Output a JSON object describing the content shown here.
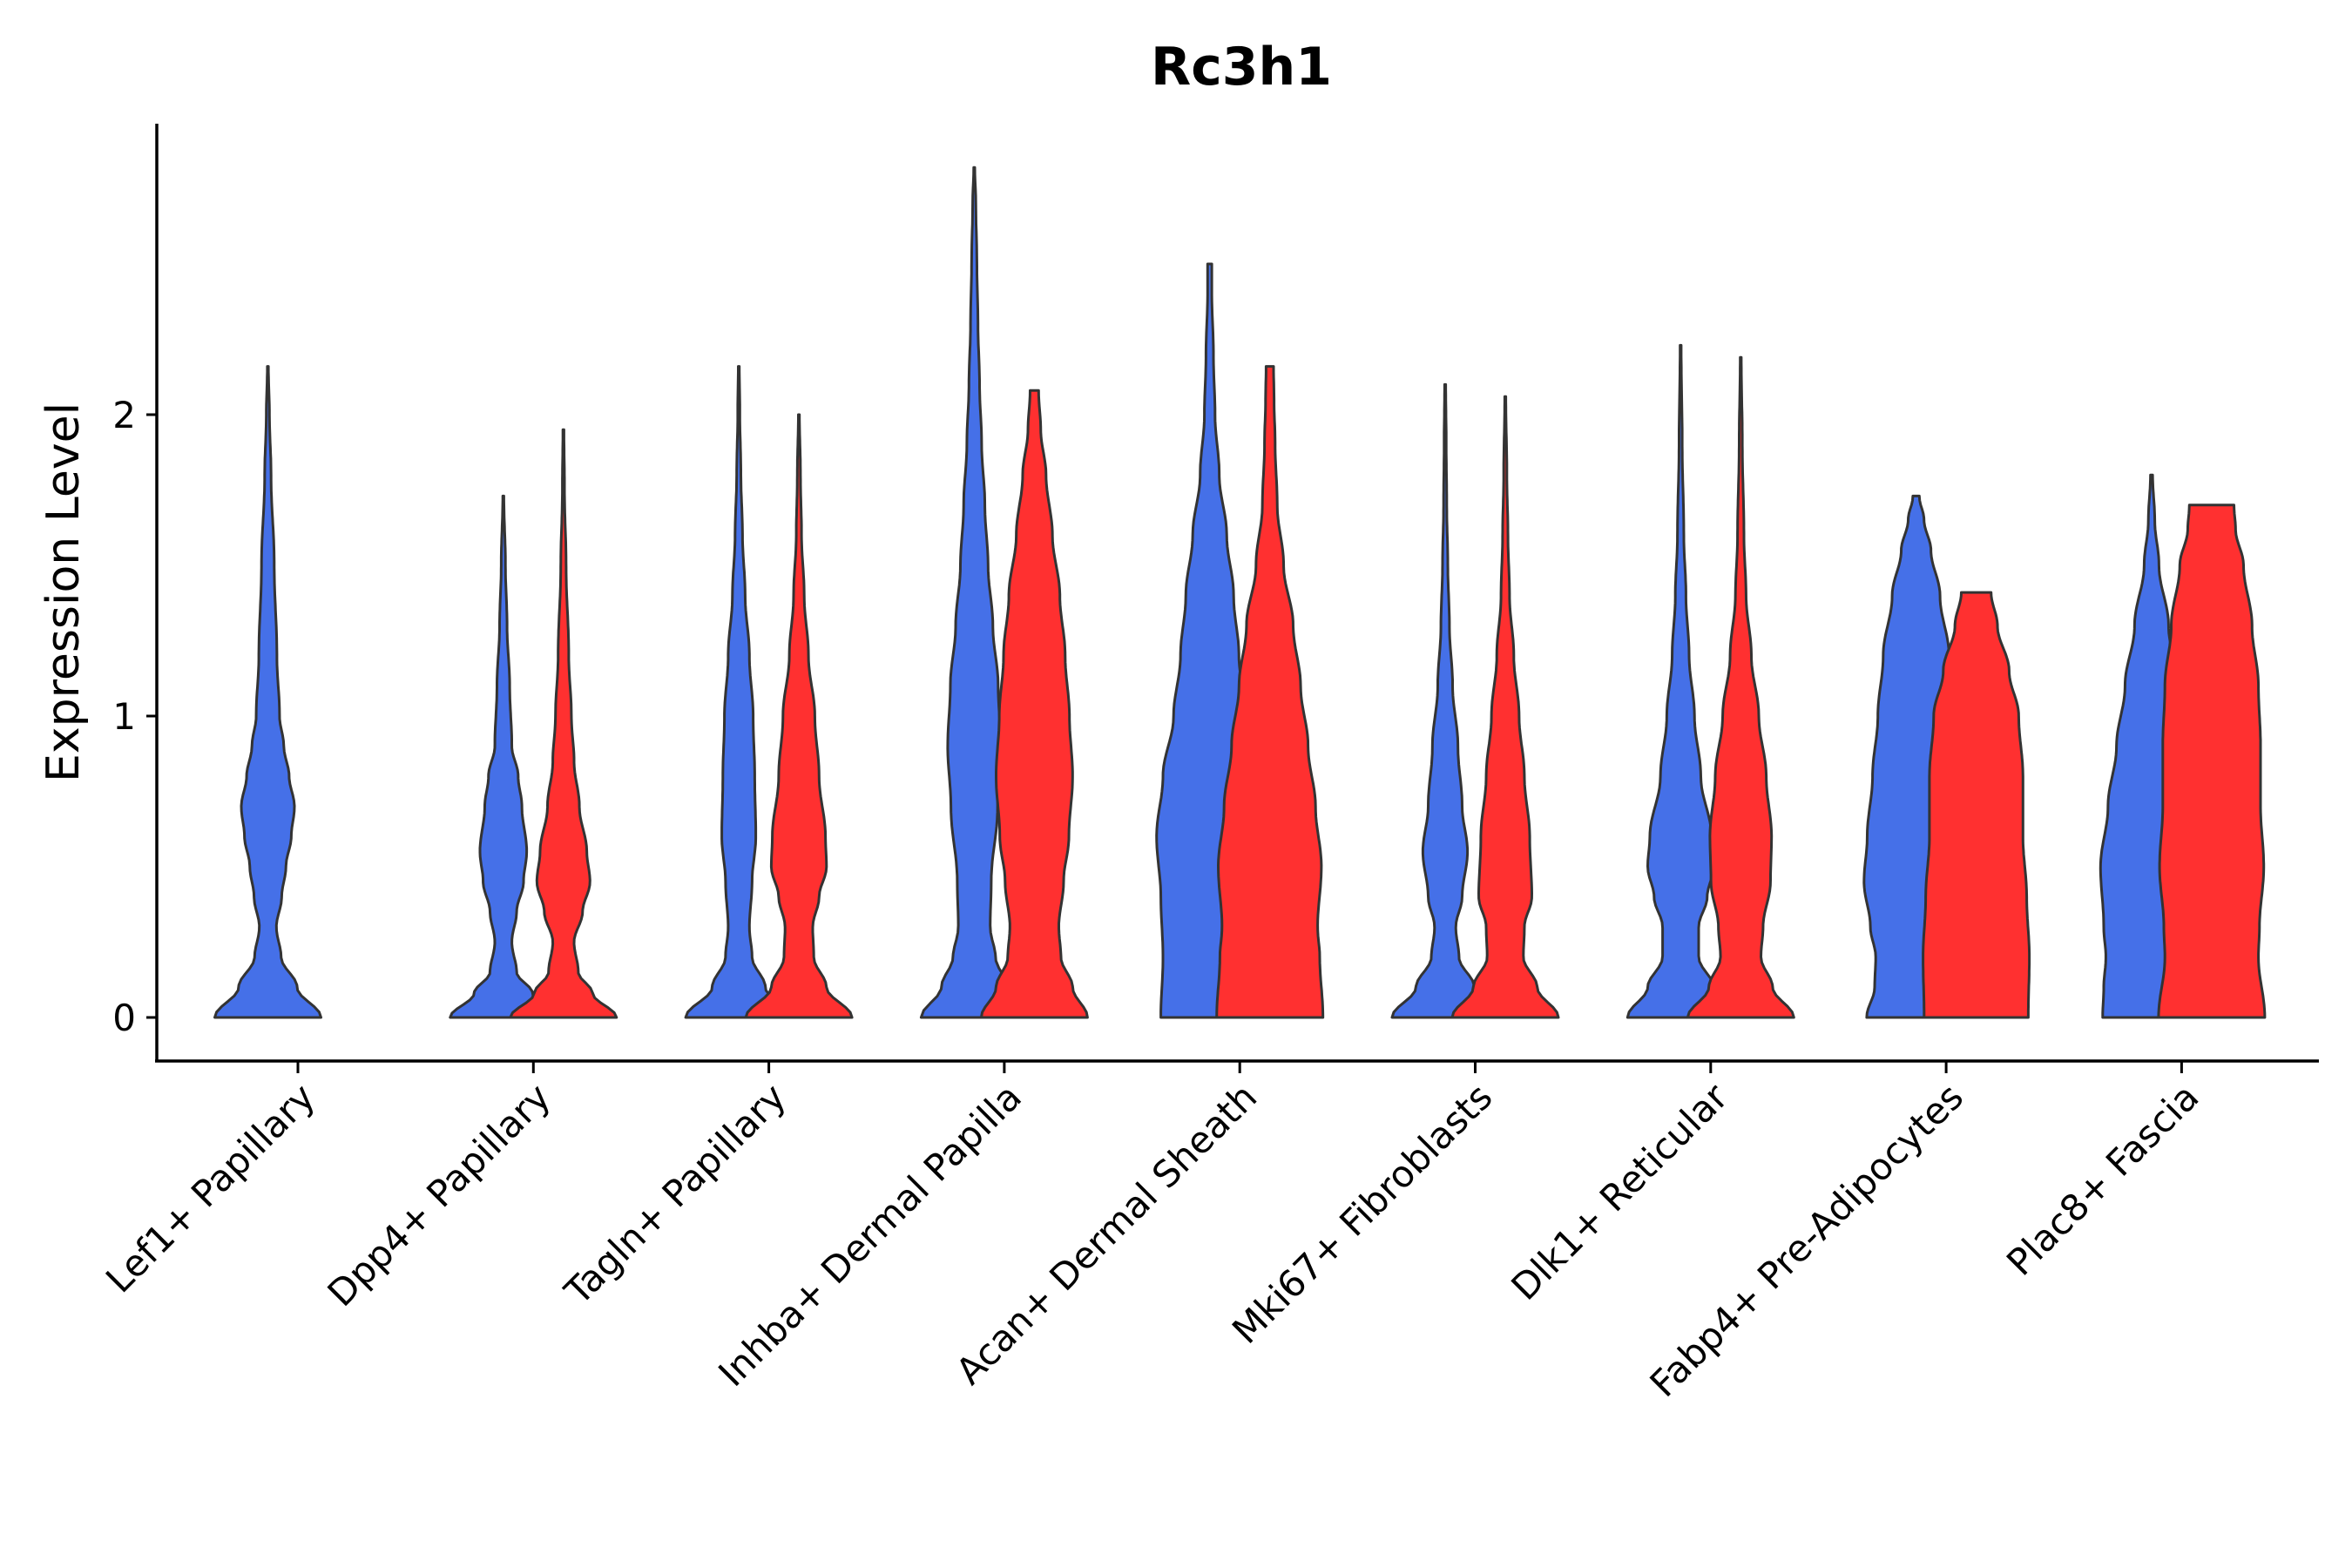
{
  "chart_data": {
    "type": "violin",
    "title": "Rc3h1",
    "xlabel": "",
    "ylabel": "Expression Level",
    "ylim": [
      -0.14,
      2.96
    ],
    "yticks": [
      0,
      1,
      2
    ],
    "grid": false,
    "legend": "none",
    "categories": [
      "Lef1+ Papillary",
      "Dpp4+ Papillary",
      "Tagln+ Papillary",
      "Inhba+ Dermal Papilla",
      "Acan+ Dermal Sheath",
      "Mki67+ Fibroblasts",
      "Dlk1+ Reticular",
      "Fabp4+ Pre-Adipocytes",
      "Plac8+ Fascia"
    ],
    "series": [
      {
        "name": "group 1",
        "color": "#4570E8"
      },
      {
        "name": "group 2",
        "color": "#FF3030"
      }
    ],
    "violins": [
      {
        "category": 0,
        "series": 0,
        "max": 2.16,
        "profile": [
          [
            0,
            1
          ],
          [
            0.1,
            0.55
          ],
          [
            0.2,
            0.25
          ],
          [
            0.3,
            0.16
          ],
          [
            0.4,
            0.26
          ],
          [
            0.5,
            0.34
          ],
          [
            0.6,
            0.44
          ],
          [
            0.7,
            0.5
          ],
          [
            0.8,
            0.4
          ],
          [
            0.9,
            0.3
          ],
          [
            1.0,
            0.22
          ],
          [
            1.2,
            0.17
          ],
          [
            1.5,
            0.12
          ],
          [
            1.8,
            0.06
          ],
          [
            2.0,
            0.03
          ],
          [
            2.16,
            0.01
          ]
        ]
      },
      {
        "category": 1,
        "series": 0,
        "max": 1.73,
        "profile": [
          [
            0,
            1
          ],
          [
            0.08,
            0.55
          ],
          [
            0.15,
            0.25
          ],
          [
            0.25,
            0.16
          ],
          [
            0.35,
            0.25
          ],
          [
            0.45,
            0.38
          ],
          [
            0.55,
            0.44
          ],
          [
            0.7,
            0.35
          ],
          [
            0.8,
            0.28
          ],
          [
            0.9,
            0.16
          ],
          [
            1.1,
            0.12
          ],
          [
            1.3,
            0.07
          ],
          [
            1.5,
            0.04
          ],
          [
            1.73,
            0.01
          ]
        ]
      },
      {
        "category": 1,
        "series": 1,
        "max": 1.95,
        "profile": [
          [
            0,
            1
          ],
          [
            0.08,
            0.55
          ],
          [
            0.15,
            0.28
          ],
          [
            0.25,
            0.2
          ],
          [
            0.35,
            0.36
          ],
          [
            0.45,
            0.5
          ],
          [
            0.55,
            0.44
          ],
          [
            0.7,
            0.3
          ],
          [
            0.85,
            0.2
          ],
          [
            1.0,
            0.15
          ],
          [
            1.2,
            0.1
          ],
          [
            1.5,
            0.05
          ],
          [
            1.75,
            0.02
          ],
          [
            1.95,
            0.01
          ]
        ]
      },
      {
        "category": 2,
        "series": 0,
        "max": 2.16,
        "profile": [
          [
            0,
            1
          ],
          [
            0.1,
            0.5
          ],
          [
            0.2,
            0.25
          ],
          [
            0.3,
            0.2
          ],
          [
            0.45,
            0.25
          ],
          [
            0.6,
            0.32
          ],
          [
            0.8,
            0.3
          ],
          [
            1.0,
            0.27
          ],
          [
            1.2,
            0.2
          ],
          [
            1.4,
            0.12
          ],
          [
            1.6,
            0.07
          ],
          [
            1.8,
            0.04
          ],
          [
            2.0,
            0.02
          ],
          [
            2.16,
            0.01
          ]
        ]
      },
      {
        "category": 2,
        "series": 1,
        "max": 2.0,
        "profile": [
          [
            0,
            1
          ],
          [
            0.1,
            0.52
          ],
          [
            0.2,
            0.28
          ],
          [
            0.3,
            0.26
          ],
          [
            0.4,
            0.38
          ],
          [
            0.5,
            0.52
          ],
          [
            0.6,
            0.5
          ],
          [
            0.8,
            0.38
          ],
          [
            1.0,
            0.3
          ],
          [
            1.2,
            0.18
          ],
          [
            1.4,
            0.1
          ],
          [
            1.6,
            0.05
          ],
          [
            1.8,
            0.03
          ],
          [
            2.0,
            0.01
          ]
        ]
      },
      {
        "category": 3,
        "series": 0,
        "max": 2.82,
        "profile": [
          [
            0,
            1
          ],
          [
            0.1,
            0.62
          ],
          [
            0.2,
            0.4
          ],
          [
            0.3,
            0.3
          ],
          [
            0.45,
            0.32
          ],
          [
            0.7,
            0.44
          ],
          [
            0.9,
            0.5
          ],
          [
            1.1,
            0.45
          ],
          [
            1.3,
            0.35
          ],
          [
            1.5,
            0.26
          ],
          [
            1.7,
            0.2
          ],
          [
            1.9,
            0.14
          ],
          [
            2.1,
            0.1
          ],
          [
            2.3,
            0.07
          ],
          [
            2.5,
            0.05
          ],
          [
            2.7,
            0.03
          ],
          [
            2.82,
            0.01
          ]
        ]
      },
      {
        "category": 3,
        "series": 1,
        "max": 2.08,
        "profile": [
          [
            0,
            1
          ],
          [
            0.1,
            0.72
          ],
          [
            0.2,
            0.5
          ],
          [
            0.3,
            0.46
          ],
          [
            0.45,
            0.55
          ],
          [
            0.6,
            0.65
          ],
          [
            0.8,
            0.72
          ],
          [
            1.0,
            0.66
          ],
          [
            1.2,
            0.58
          ],
          [
            1.4,
            0.48
          ],
          [
            1.6,
            0.34
          ],
          [
            1.8,
            0.22
          ],
          [
            1.95,
            0.12
          ],
          [
            2.08,
            0.08
          ]
        ]
      },
      {
        "category": 4,
        "series": 0,
        "max": 2.5,
        "profile": [
          [
            0,
            0.92
          ],
          [
            0.2,
            0.88
          ],
          [
            0.4,
            0.92
          ],
          [
            0.6,
            1.0
          ],
          [
            0.8,
            0.88
          ],
          [
            1.0,
            0.68
          ],
          [
            1.2,
            0.55
          ],
          [
            1.4,
            0.45
          ],
          [
            1.6,
            0.32
          ],
          [
            1.8,
            0.18
          ],
          [
            2.0,
            0.1
          ],
          [
            2.2,
            0.07
          ],
          [
            2.4,
            0.04
          ],
          [
            2.5,
            0.04
          ]
        ]
      },
      {
        "category": 4,
        "series": 1,
        "max": 2.16,
        "profile": [
          [
            0,
            1
          ],
          [
            0.2,
            0.94
          ],
          [
            0.3,
            0.9
          ],
          [
            0.5,
            0.97
          ],
          [
            0.7,
            0.86
          ],
          [
            0.9,
            0.72
          ],
          [
            1.1,
            0.58
          ],
          [
            1.3,
            0.44
          ],
          [
            1.5,
            0.26
          ],
          [
            1.7,
            0.14
          ],
          [
            1.9,
            0.1
          ],
          [
            2.05,
            0.08
          ],
          [
            2.16,
            0.07
          ]
        ]
      },
      {
        "category": 5,
        "series": 0,
        "max": 2.1,
        "profile": [
          [
            0,
            1
          ],
          [
            0.1,
            0.55
          ],
          [
            0.2,
            0.26
          ],
          [
            0.3,
            0.2
          ],
          [
            0.4,
            0.32
          ],
          [
            0.55,
            0.42
          ],
          [
            0.7,
            0.32
          ],
          [
            0.9,
            0.24
          ],
          [
            1.1,
            0.14
          ],
          [
            1.3,
            0.08
          ],
          [
            1.5,
            0.05
          ],
          [
            1.7,
            0.03
          ],
          [
            1.9,
            0.02
          ],
          [
            2.1,
            0.01
          ]
        ]
      },
      {
        "category": 5,
        "series": 1,
        "max": 2.06,
        "profile": [
          [
            0,
            1
          ],
          [
            0.1,
            0.6
          ],
          [
            0.2,
            0.34
          ],
          [
            0.3,
            0.36
          ],
          [
            0.4,
            0.5
          ],
          [
            0.6,
            0.46
          ],
          [
            0.8,
            0.36
          ],
          [
            1.0,
            0.26
          ],
          [
            1.2,
            0.16
          ],
          [
            1.4,
            0.08
          ],
          [
            1.6,
            0.05
          ],
          [
            1.8,
            0.03
          ],
          [
            2.06,
            0.01
          ]
        ]
      },
      {
        "category": 6,
        "series": 0,
        "max": 2.23,
        "profile": [
          [
            0,
            1
          ],
          [
            0.1,
            0.62
          ],
          [
            0.2,
            0.34
          ],
          [
            0.3,
            0.34
          ],
          [
            0.4,
            0.5
          ],
          [
            0.5,
            0.62
          ],
          [
            0.6,
            0.58
          ],
          [
            0.8,
            0.38
          ],
          [
            1.0,
            0.26
          ],
          [
            1.2,
            0.16
          ],
          [
            1.4,
            0.1
          ],
          [
            1.6,
            0.06
          ],
          [
            1.9,
            0.03
          ],
          [
            2.23,
            0.01
          ]
        ]
      },
      {
        "category": 6,
        "series": 1,
        "max": 2.19,
        "profile": [
          [
            0,
            1
          ],
          [
            0.1,
            0.6
          ],
          [
            0.2,
            0.38
          ],
          [
            0.3,
            0.42
          ],
          [
            0.45,
            0.56
          ],
          [
            0.6,
            0.58
          ],
          [
            0.8,
            0.48
          ],
          [
            1.0,
            0.34
          ],
          [
            1.2,
            0.2
          ],
          [
            1.4,
            0.1
          ],
          [
            1.6,
            0.06
          ],
          [
            1.9,
            0.03
          ],
          [
            2.19,
            0.01
          ]
        ]
      },
      {
        "category": 7,
        "series": 0,
        "max": 1.73,
        "profile": [
          [
            0,
            0.93
          ],
          [
            0.1,
            0.78
          ],
          [
            0.2,
            0.76
          ],
          [
            0.3,
            0.86
          ],
          [
            0.45,
            0.98
          ],
          [
            0.6,
            0.92
          ],
          [
            0.8,
            0.82
          ],
          [
            1.0,
            0.72
          ],
          [
            1.2,
            0.62
          ],
          [
            1.4,
            0.45
          ],
          [
            1.55,
            0.28
          ],
          [
            1.65,
            0.15
          ],
          [
            1.73,
            0.06
          ]
        ]
      },
      {
        "category": 7,
        "series": 1,
        "max": 1.41,
        "profile": [
          [
            0,
            0.98
          ],
          [
            0.2,
            1.0
          ],
          [
            0.4,
            0.95
          ],
          [
            0.6,
            0.88
          ],
          [
            0.8,
            0.88
          ],
          [
            1.0,
            0.8
          ],
          [
            1.15,
            0.62
          ],
          [
            1.3,
            0.4
          ],
          [
            1.41,
            0.28
          ]
        ]
      },
      {
        "category": 8,
        "series": 0,
        "max": 1.8,
        "profile": [
          [
            0,
            0.92
          ],
          [
            0.1,
            0.9
          ],
          [
            0.2,
            0.86
          ],
          [
            0.3,
            0.9
          ],
          [
            0.5,
            0.96
          ],
          [
            0.7,
            0.82
          ],
          [
            0.9,
            0.66
          ],
          [
            1.1,
            0.5
          ],
          [
            1.3,
            0.32
          ],
          [
            1.5,
            0.14
          ],
          [
            1.65,
            0.06
          ],
          [
            1.8,
            0.02
          ]
        ]
      },
      {
        "category": 8,
        "series": 1,
        "max": 1.7,
        "profile": [
          [
            0,
            1
          ],
          [
            0.2,
            0.88
          ],
          [
            0.3,
            0.9
          ],
          [
            0.5,
            0.98
          ],
          [
            0.7,
            0.92
          ],
          [
            0.9,
            0.92
          ],
          [
            1.1,
            0.88
          ],
          [
            1.3,
            0.76
          ],
          [
            1.5,
            0.6
          ],
          [
            1.62,
            0.45
          ],
          [
            1.7,
            0.42
          ]
        ]
      }
    ]
  }
}
